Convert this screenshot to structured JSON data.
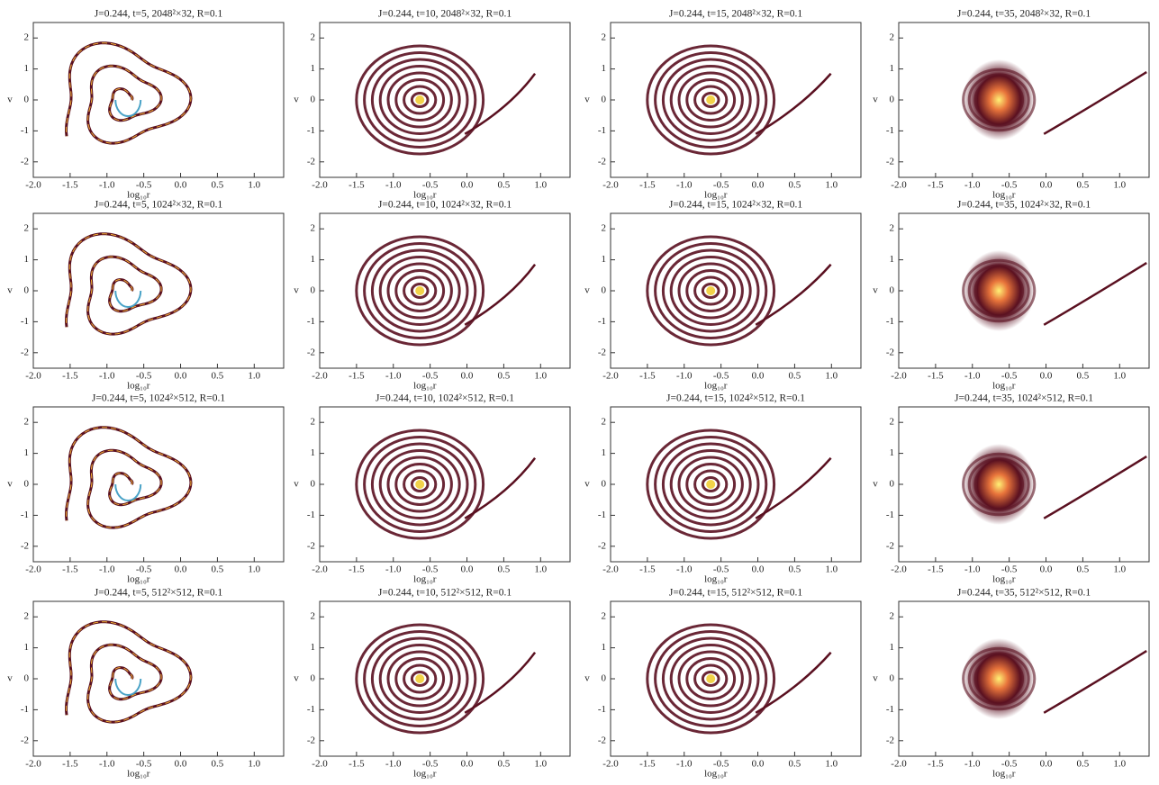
{
  "chart_data": [
    {
      "type": "density",
      "title": "J=0.244, t=5, 2048²×32, R=0.1",
      "x_label": "log₁₀r",
      "y_label": "v",
      "xlim": [
        -2,
        1.4
      ],
      "ylim": [
        -2.5,
        2.5
      ],
      "xticks": [
        {
          "value": -2,
          "label": "-2.0"
        },
        -1.5,
        {
          "value": -1,
          "label": "-1.0"
        },
        -0.5,
        {
          "value": 0,
          "label": "0.0"
        },
        0.5,
        {
          "value": 1,
          "label": "1.0"
        }
      ],
      "yticks": [
        -2,
        -1,
        0,
        1,
        2
      ]
    },
    {
      "type": "density",
      "title": "J=0.244, t=10, 2048²×32, R=0.1",
      "x_label": "log₁₀r",
      "y_label": "v",
      "xlim": [
        -2,
        1.4
      ],
      "ylim": [
        -2.5,
        2.5
      ],
      "xticks": [
        {
          "value": -2,
          "label": "-2.0"
        },
        -1.5,
        {
          "value": -1,
          "label": "-1.0"
        },
        -0.5,
        {
          "value": 0,
          "label": "0.0"
        },
        0.5,
        {
          "value": 1,
          "label": "1.0"
        }
      ],
      "yticks": [
        -2,
        -1,
        0,
        1,
        2
      ]
    },
    {
      "type": "density",
      "title": "J=0.244, t=15, 2048²×32, R=0.1",
      "x_label": "log₁₀r",
      "y_label": "v",
      "xlim": [
        -2,
        1.4
      ],
      "ylim": [
        -2.5,
        2.5
      ],
      "xticks": [
        {
          "value": -2,
          "label": "-2.0"
        },
        -1.5,
        {
          "value": -1,
          "label": "-1.0"
        },
        -0.5,
        {
          "value": 0,
          "label": "0.0"
        },
        0.5,
        {
          "value": 1,
          "label": "1.0"
        }
      ],
      "yticks": [
        -2,
        -1,
        0,
        1,
        2
      ]
    },
    {
      "type": "density",
      "title": "J=0.244, t=35, 2048²×32, R=0.1",
      "x_label": "log₁₀r",
      "y_label": "v",
      "xlim": [
        -2,
        1.4
      ],
      "ylim": [
        -2.5,
        2.5
      ],
      "xticks": [
        {
          "value": -2,
          "label": "-2.0"
        },
        -1.5,
        {
          "value": -1,
          "label": "-1.0"
        },
        -0.5,
        {
          "value": 0,
          "label": "0.0"
        },
        0.5,
        {
          "value": 1,
          "label": "1.0"
        }
      ],
      "yticks": [
        -2,
        -1,
        0,
        1,
        2
      ]
    },
    {
      "type": "density",
      "title": "J=0.244, t=5, 1024²×32, R=0.1",
      "x_label": "log₁₀r",
      "y_label": "v",
      "xlim": [
        -2,
        1.4
      ],
      "ylim": [
        -2.5,
        2.5
      ],
      "xticks": [
        {
          "value": -2,
          "label": "-2.0"
        },
        -1.5,
        {
          "value": -1,
          "label": "-1.0"
        },
        -0.5,
        {
          "value": 0,
          "label": "0.0"
        },
        0.5,
        {
          "value": 1,
          "label": "1.0"
        }
      ],
      "yticks": [
        -2,
        -1,
        0,
        1,
        2
      ]
    },
    {
      "type": "density",
      "title": "J=0.244, t=10, 1024²×32, R=0.1",
      "x_label": "log₁₀r",
      "y_label": "v",
      "xlim": [
        -2,
        1.4
      ],
      "ylim": [
        -2.5,
        2.5
      ],
      "xticks": [
        {
          "value": -2,
          "label": "-2.0"
        },
        -1.5,
        {
          "value": -1,
          "label": "-1.0"
        },
        -0.5,
        {
          "value": 0,
          "label": "0.0"
        },
        0.5,
        {
          "value": 1,
          "label": "1.0"
        }
      ],
      "yticks": [
        -2,
        -1,
        0,
        1,
        2
      ]
    },
    {
      "type": "density",
      "title": "J=0.244, t=15, 1024²×32, R=0.1",
      "x_label": "log₁₀r",
      "y_label": "v",
      "xlim": [
        -2,
        1.4
      ],
      "ylim": [
        -2.5,
        2.5
      ],
      "xticks": [
        {
          "value": -2,
          "label": "-2.0"
        },
        -1.5,
        {
          "value": -1,
          "label": "-1.0"
        },
        -0.5,
        {
          "value": 0,
          "label": "0.0"
        },
        0.5,
        {
          "value": 1,
          "label": "1.0"
        }
      ],
      "yticks": [
        -2,
        -1,
        0,
        1,
        2
      ]
    },
    {
      "type": "density",
      "title": "J=0.244, t=35, 1024²×32, R=0.1",
      "x_label": "log₁₀r",
      "y_label": "v",
      "xlim": [
        -2,
        1.4
      ],
      "ylim": [
        -2.5,
        2.5
      ],
      "xticks": [
        {
          "value": -2,
          "label": "-2.0"
        },
        -1.5,
        {
          "value": -1,
          "label": "-1.0"
        },
        -0.5,
        {
          "value": 0,
          "label": "0.0"
        },
        0.5,
        {
          "value": 1,
          "label": "1.0"
        }
      ],
      "yticks": [
        -2,
        -1,
        0,
        1,
        2
      ]
    },
    {
      "type": "density",
      "title": "J=0.244, t=5, 1024²×512, R=0.1",
      "x_label": "log₁₀r",
      "y_label": "v",
      "xlim": [
        -2,
        1.4
      ],
      "ylim": [
        -2.5,
        2.5
      ],
      "xticks": [
        {
          "value": -2,
          "label": "-2.0"
        },
        -1.5,
        {
          "value": -1,
          "label": "-1.0"
        },
        -0.5,
        {
          "value": 0,
          "label": "0.0"
        },
        0.5,
        {
          "value": 1,
          "label": "1.0"
        }
      ],
      "yticks": [
        -2,
        -1,
        0,
        1,
        2
      ]
    },
    {
      "type": "density",
      "title": "J=0.244, t=10, 1024²×512, R=0.1",
      "x_label": "log₁₀r",
      "y_label": "v",
      "xlim": [
        -2,
        1.4
      ],
      "ylim": [
        -2.5,
        2.5
      ],
      "xticks": [
        {
          "value": -2,
          "label": "-2.0"
        },
        -1.5,
        {
          "value": -1,
          "label": "-1.0"
        },
        -0.5,
        {
          "value": 0,
          "label": "0.0"
        },
        0.5,
        {
          "value": 1,
          "label": "1.0"
        }
      ],
      "yticks": [
        -2,
        -1,
        0,
        1,
        2
      ]
    },
    {
      "type": "density",
      "title": "J=0.244, t=15, 1024²×512, R=0.1",
      "x_label": "log₁₀r",
      "y_label": "v",
      "xlim": [
        -2,
        1.4
      ],
      "ylim": [
        -2.5,
        2.5
      ],
      "xticks": [
        {
          "value": -2,
          "label": "-2.0"
        },
        -1.5,
        {
          "value": -1,
          "label": "-1.0"
        },
        -0.5,
        {
          "value": 0,
          "label": "0.0"
        },
        0.5,
        {
          "value": 1,
          "label": "1.0"
        }
      ],
      "yticks": [
        -2,
        -1,
        0,
        1,
        2
      ]
    },
    {
      "type": "density",
      "title": "J=0.244, t=35, 1024²×512, R=0.1",
      "x_label": "log₁₀r",
      "y_label": "v",
      "xlim": [
        -2,
        1.4
      ],
      "ylim": [
        -2.5,
        2.5
      ],
      "xticks": [
        {
          "value": -2,
          "label": "-2.0"
        },
        -1.5,
        {
          "value": -1,
          "label": "-1.0"
        },
        -0.5,
        {
          "value": 0,
          "label": "0.0"
        },
        0.5,
        {
          "value": 1,
          "label": "1.0"
        }
      ],
      "yticks": [
        -2,
        -1,
        0,
        1,
        2
      ]
    },
    {
      "type": "density",
      "title": "J=0.244, t=5, 512²×512, R=0.1",
      "x_label": "log₁₀r",
      "y_label": "v",
      "xlim": [
        -2,
        1.4
      ],
      "ylim": [
        -2.5,
        2.5
      ],
      "xticks": [
        {
          "value": -2,
          "label": "-2.0"
        },
        -1.5,
        {
          "value": -1,
          "label": "-1.0"
        },
        -0.5,
        {
          "value": 0,
          "label": "0.0"
        },
        0.5,
        {
          "value": 1,
          "label": "1.0"
        }
      ],
      "yticks": [
        -2,
        -1,
        0,
        1,
        2
      ]
    },
    {
      "type": "density",
      "title": "J=0.244, t=10, 512²×512, R=0.1",
      "x_label": "log₁₀r",
      "y_label": "v",
      "xlim": [
        -2,
        1.4
      ],
      "ylim": [
        -2.5,
        2.5
      ],
      "xticks": [
        {
          "value": -2,
          "label": "-2.0"
        },
        -1.5,
        {
          "value": -1,
          "label": "-1.0"
        },
        -0.5,
        {
          "value": 0,
          "label": "0.0"
        },
        0.5,
        {
          "value": 1,
          "label": "1.0"
        }
      ],
      "yticks": [
        -2,
        -1,
        0,
        1,
        2
      ]
    },
    {
      "type": "density",
      "title": "J=0.244, t=15, 512²×512, R=0.1",
      "x_label": "log₁₀r",
      "y_label": "v",
      "xlim": [
        -2,
        1.4
      ],
      "ylim": [
        -2.5,
        2.5
      ],
      "xticks": [
        {
          "value": -2,
          "label": "-2.0"
        },
        -1.5,
        {
          "value": -1,
          "label": "-1.0"
        },
        -0.5,
        {
          "value": 0,
          "label": "0.0"
        },
        0.5,
        {
          "value": 1,
          "label": "1.0"
        }
      ],
      "yticks": [
        -2,
        -1,
        0,
        1,
        2
      ]
    },
    {
      "type": "density",
      "title": "J=0.244, t=35, 512²×512, R=0.1",
      "x_label": "log₁₀r",
      "y_label": "v",
      "xlim": [
        -2,
        1.4
      ],
      "ylim": [
        -2.5,
        2.5
      ],
      "xticks": [
        {
          "value": -2,
          "label": "-2.0"
        },
        -1.5,
        {
          "value": -1,
          "label": "-1.0"
        },
        -0.5,
        {
          "value": 0,
          "label": "0.0"
        },
        0.5,
        {
          "value": 1,
          "label": "1.0"
        }
      ],
      "yticks": [
        -2,
        -1,
        0,
        1,
        2
      ]
    }
  ]
}
